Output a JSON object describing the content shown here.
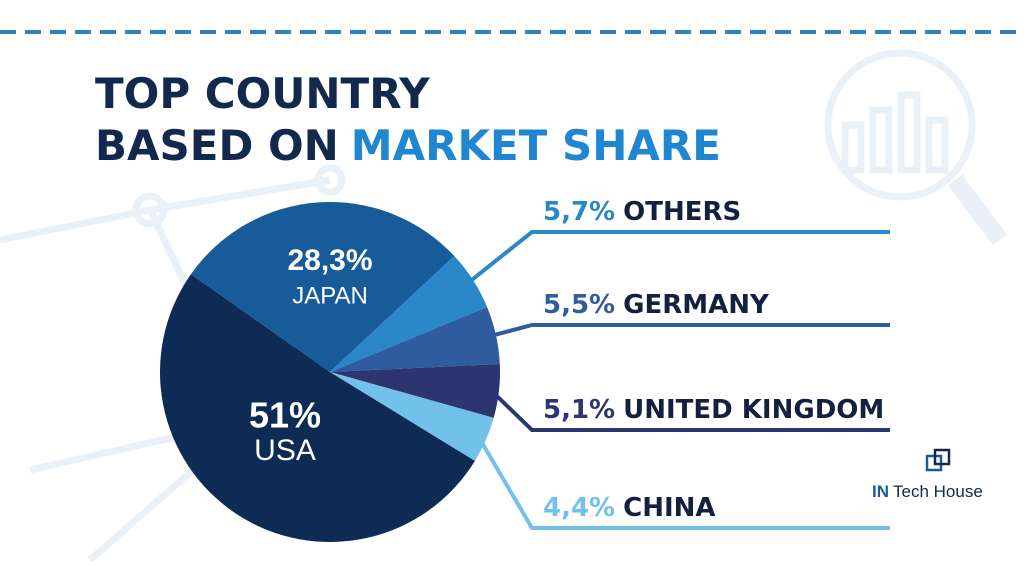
{
  "title": [
    "TOP COUNTRY",
    "BASED ON",
    "MARKET SHARE"
  ],
  "brand": [
    "IN",
    "Tech House"
  ],
  "chart_data": {
    "type": "pie",
    "categories": [
      "USA",
      "JAPAN",
      "OTHERS",
      "GERMANY",
      "UNITED KINGDOM",
      "CHINA"
    ],
    "values": [
      51,
      28.3,
      5.7,
      5.5,
      5.1,
      4.4
    ],
    "value_labels": [
      "51%",
      "28,3%",
      "5,7%",
      "5,5%",
      "5,1%",
      "4,4%"
    ],
    "colors": [
      "#0d2b55",
      "#185b99",
      "#2a88c8",
      "#2e5c9e",
      "#2c3570",
      "#72c1ea"
    ]
  }
}
